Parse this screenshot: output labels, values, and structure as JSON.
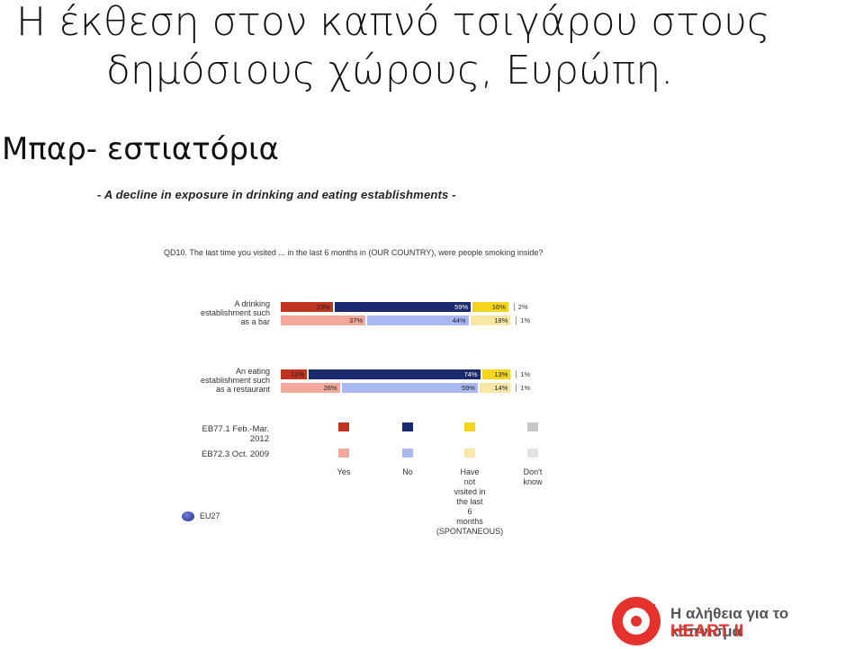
{
  "slide": {
    "title_line1": "Η έκθεση στον καπνό τσιγάρου στους",
    "title_line2": "δημόσιους χώρους, Ευρώπη.",
    "subtitle": "Μπαρ- εστιατόρια"
  },
  "chart_data": {
    "type": "bar",
    "stacked": true,
    "orientation": "horizontal",
    "title": "- A decline in exposure in drinking and eating establishments -",
    "question": "QD10. The last time you visited ... in the last 6 months in (OUR COUNTRY), were people smoking inside?",
    "categories": [
      "A drinking establishment such as a bar",
      "An eating establishment such as a restaurant"
    ],
    "category_lines": [
      [
        "A drinking",
        "establishment such",
        "as a bar"
      ],
      [
        "An eating",
        "establishment such",
        "as a restaurant"
      ]
    ],
    "waves": [
      "EB77.1 Feb.-Mar. 2012",
      "EB72.3 Oct. 2009"
    ],
    "wave_lines": [
      [
        "EB77.1 Feb.-Mar.",
        "2012"
      ],
      [
        "EB72.3 Oct. 2009"
      ]
    ],
    "legend_items": [
      "Yes",
      "No",
      "Have not visited in the last 6 months (SPONTANEOUS)",
      "Don't know"
    ],
    "legend_lines": [
      [
        "Yes"
      ],
      [
        "No"
      ],
      [
        "Have",
        "not",
        "visited in",
        "the last",
        "6",
        "months",
        "(SPONTANEOUS)"
      ],
      [
        "Don't",
        "know"
      ]
    ],
    "series_colors": {
      "EB77.1 Feb.-Mar. 2012": [
        "#c0341f",
        "#1b2a6e",
        "#f2d51c",
        "#c8c8c8"
      ],
      "EB72.3 Oct. 2009": [
        "#f3a89a",
        "#a9b8f2",
        "#f7e6a4",
        "#e3e3e3"
      ]
    },
    "values": {
      "A drinking establishment such as a bar": {
        "EB77.1 Feb.-Mar. 2012": [
          23,
          59,
          16,
          2
        ],
        "EB72.3 Oct. 2009": [
          37,
          44,
          18,
          1
        ]
      },
      "An eating establishment such as a restaurant": {
        "EB77.1 Feb.-Mar. 2012": [
          12,
          74,
          13,
          1
        ],
        "EB72.3 Oct. 2009": [
          26,
          59,
          14,
          1
        ]
      }
    },
    "unit": "%",
    "region_label": "EU27"
  },
  "logo": {
    "text_line1": "Η αλήθεια για το κάπνισμα",
    "text_line2": "HEART II",
    "color": "#e5322d"
  }
}
